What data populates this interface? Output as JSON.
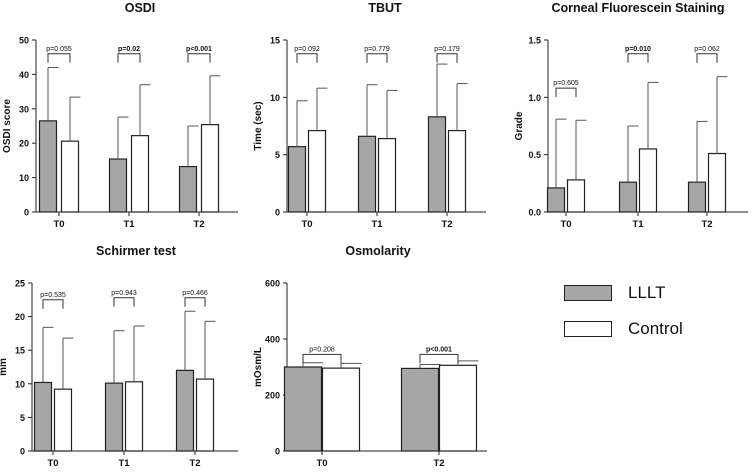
{
  "figure": {
    "legend": [
      {
        "name": "LLLT",
        "color": "#a6a6a6"
      },
      {
        "name": "Control",
        "color": "#ffffff"
      }
    ]
  },
  "chart_data": [
    {
      "type": "bar",
      "title": "OSDI",
      "xlabel": "",
      "ylabel": "OSDI score",
      "categories": [
        "T0",
        "T1",
        "T2"
      ],
      "ylim": [
        0,
        50
      ],
      "yticks": [
        0,
        10,
        20,
        30,
        40,
        50
      ],
      "series": [
        {
          "name": "LLLT",
          "values": [
            26.5,
            15.4,
            13.2
          ],
          "errors": [
            15.5,
            12.2,
            11.8
          ]
        },
        {
          "name": "Control",
          "values": [
            20.6,
            22.2,
            25.4
          ],
          "errors": [
            12.8,
            14.8,
            14.2
          ]
        }
      ],
      "annotations": [
        {
          "category": "T0",
          "text": "p=0.055",
          "bold": false,
          "y": 46
        },
        {
          "category": "T1",
          "text": "p=0.02",
          "bold": true,
          "y": 46
        },
        {
          "category": "T2",
          "text": "p<0.001",
          "bold": true,
          "y": 46
        }
      ]
    },
    {
      "type": "bar",
      "title": "TBUT",
      "xlabel": "",
      "ylabel": "Time (sec)",
      "categories": [
        "T0",
        "T1",
        "T2"
      ],
      "ylim": [
        0,
        15
      ],
      "yticks": [
        0,
        5,
        10,
        15
      ],
      "series": [
        {
          "name": "LLLT",
          "values": [
            5.7,
            6.6,
            8.3
          ],
          "errors": [
            4.0,
            4.5,
            4.6
          ]
        },
        {
          "name": "Control",
          "values": [
            7.1,
            6.4,
            7.1
          ],
          "errors": [
            3.7,
            4.2,
            4.1
          ]
        }
      ],
      "annotations": [
        {
          "category": "T0",
          "text": "p=0.092",
          "bold": false,
          "y": 13.8
        },
        {
          "category": "T1",
          "text": "p=0.779",
          "bold": false,
          "y": 13.8
        },
        {
          "category": "T2",
          "text": "p=0.179",
          "bold": false,
          "y": 13.8
        }
      ]
    },
    {
      "type": "bar",
      "title": "Corneal Fluorescein Staining",
      "xlabel": "",
      "ylabel": "Grade",
      "categories": [
        "T0",
        "T1",
        "T2"
      ],
      "ylim": [
        0,
        1.5
      ],
      "yticks": [
        0.0,
        0.5,
        1.0,
        1.5
      ],
      "tick_decimals": 1,
      "series": [
        {
          "name": "LLLT",
          "values": [
            0.21,
            0.26,
            0.26
          ],
          "errors": [
            0.6,
            0.49,
            0.53
          ]
        },
        {
          "name": "Control",
          "values": [
            0.28,
            0.55,
            0.51
          ],
          "errors": [
            0.52,
            0.58,
            0.67
          ]
        }
      ],
      "annotations": [
        {
          "category": "T0",
          "text": "p=0.605",
          "bold": false,
          "y": 1.08
        },
        {
          "category": "T1",
          "text": "p=0.010",
          "bold": true,
          "y": 1.38
        },
        {
          "category": "T2",
          "text": "p=0.062",
          "bold": false,
          "y": 1.38
        }
      ]
    },
    {
      "type": "bar",
      "title": "Schirmer test",
      "xlabel": "",
      "ylabel": "mm",
      "categories": [
        "T0",
        "T1",
        "T2"
      ],
      "ylim": [
        0,
        25
      ],
      "yticks": [
        0,
        5,
        10,
        15,
        20,
        25
      ],
      "series": [
        {
          "name": "LLLT",
          "values": [
            10.2,
            10.1,
            12.0
          ],
          "errors": [
            8.2,
            7.8,
            8.8
          ]
        },
        {
          "name": "Control",
          "values": [
            9.2,
            10.3,
            10.7
          ],
          "errors": [
            7.6,
            8.3,
            8.6
          ]
        }
      ],
      "annotations": [
        {
          "category": "T0",
          "text": "p=0.535",
          "bold": false,
          "y": 22.5
        },
        {
          "category": "T1",
          "text": "p=0.943",
          "bold": false,
          "y": 22.8
        },
        {
          "category": "T2",
          "text": "p=0.466",
          "bold": false,
          "y": 22.8
        }
      ]
    },
    {
      "type": "bar",
      "title": "Osmolarity",
      "xlabel": "",
      "ylabel": "mOsm/L",
      "categories": [
        "T0",
        "T2"
      ],
      "ylim": [
        0,
        600
      ],
      "yticks": [
        0,
        200,
        400,
        600
      ],
      "series": [
        {
          "name": "LLLT",
          "values": [
            300,
            295
          ],
          "errors": [
            15,
            14
          ]
        },
        {
          "name": "Control",
          "values": [
            296,
            306
          ],
          "errors": [
            17,
            16
          ]
        }
      ],
      "annotations": [
        {
          "category": "T0",
          "text": "p=0.208",
          "bold": false,
          "y": 345
        },
        {
          "category": "T2",
          "text": "p<0.001",
          "bold": true,
          "y": 345
        }
      ]
    }
  ]
}
